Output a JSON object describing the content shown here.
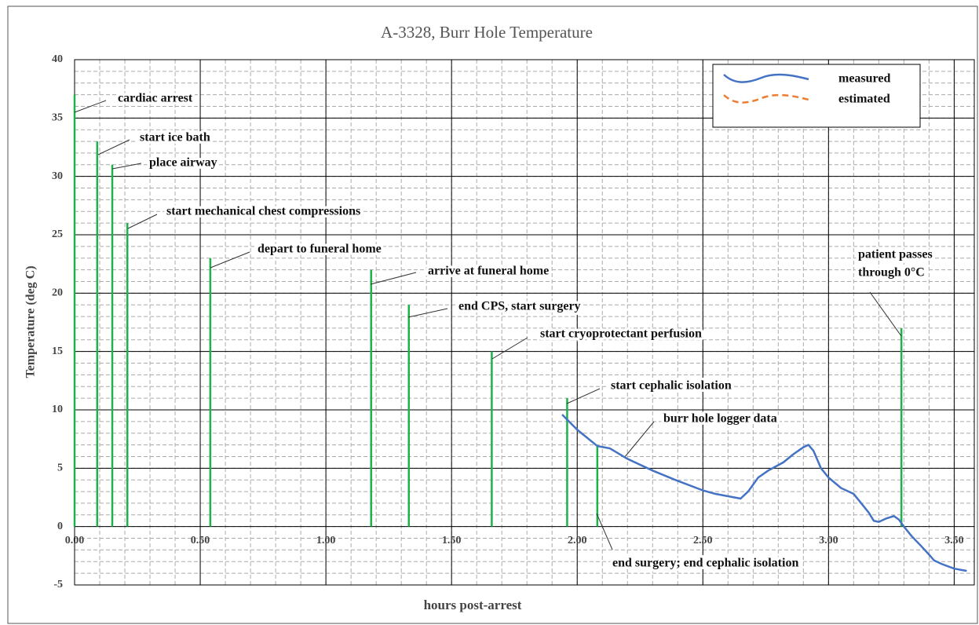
{
  "chart_data": {
    "type": "line",
    "title": "A-3328, Burr Hole Temperature",
    "xlabel": "hours post-arrest",
    "ylabel": "Temperature (deg C)",
    "xlim": [
      0,
      3.58
    ],
    "ylim": [
      -5,
      40
    ],
    "xticks": [
      {
        "value": 0,
        "label": "0.00"
      },
      {
        "value": 0.5,
        "label": "0.50"
      },
      {
        "value": 1,
        "label": "1.00"
      },
      {
        "value": 1.5,
        "label": "1.50"
      },
      {
        "value": 2,
        "label": "2.00"
      },
      {
        "value": 2.5,
        "label": "2.50"
      },
      {
        "value": 3,
        "label": "3.00"
      },
      {
        "value": 3.5,
        "label": "3.50"
      }
    ],
    "yticks": [
      -5,
      0,
      5,
      10,
      15,
      20,
      25,
      30,
      35,
      40
    ],
    "grid": true,
    "minor_grid": {
      "x": 0.1,
      "y": 1
    },
    "legend": "upper right",
    "series": [
      {
        "name": "measured",
        "color": "#4472c4",
        "style": "solid",
        "x": [
          1.94,
          2.0,
          2.08,
          2.13,
          2.2,
          2.3,
          2.39,
          2.5,
          2.55,
          2.6,
          2.65,
          2.68,
          2.72,
          2.76,
          2.82,
          2.86,
          2.9,
          2.92,
          2.94,
          2.97,
          3.0,
          3.05,
          3.1,
          3.13,
          3.16,
          3.18,
          3.2,
          3.23,
          3.26,
          3.28,
          3.3,
          3.33,
          3.37,
          3.4,
          3.42,
          3.45,
          3.5,
          3.55
        ],
        "values": [
          9.6,
          8.3,
          6.9,
          6.7,
          5.8,
          4.8,
          4.0,
          3.1,
          2.8,
          2.6,
          2.4,
          3.0,
          4.2,
          4.8,
          5.5,
          6.2,
          6.8,
          7.0,
          6.5,
          5.0,
          4.2,
          3.3,
          2.8,
          2.0,
          1.2,
          0.5,
          0.4,
          0.7,
          0.9,
          0.6,
          0.0,
          -0.8,
          -1.7,
          -2.4,
          -2.9,
          -3.2,
          -3.6,
          -3.8
        ]
      },
      {
        "name": "estimated",
        "color": "#ed7d31",
        "style": "dashed",
        "x": [],
        "values": []
      }
    ],
    "event_color": "#1db34a",
    "events": [
      {
        "x": 0,
        "top": 37,
        "label": [
          "cardiac arrest"
        ]
      },
      {
        "x": 0.09,
        "top": 33,
        "label": [
          "start ice bath"
        ]
      },
      {
        "x": 0.15,
        "top": 31,
        "label": [
          "place airway"
        ]
      },
      {
        "x": 0.21,
        "top": 26,
        "label": [
          "start mechanical chest compressions"
        ]
      },
      {
        "x": 0.54,
        "top": 23,
        "label": [
          "depart to funeral home"
        ]
      },
      {
        "x": 1.18,
        "top": 22,
        "label": [
          "arrive at funeral home"
        ]
      },
      {
        "x": 1.33,
        "top": 19,
        "label": [
          "end CPS, start surgery"
        ]
      },
      {
        "x": 1.66,
        "top": 15,
        "label": [
          "start cryoprotectant perfusion"
        ]
      },
      {
        "x": 1.96,
        "top": 11,
        "label": [
          "start cephalic isolation"
        ]
      },
      {
        "x": 2.08,
        "top": 7,
        "label": [
          "end surgery; end cephalic isolation"
        ]
      },
      {
        "x": 3.29,
        "top": 17,
        "label": [
          "patient passes",
          "through 0°C"
        ]
      }
    ],
    "annotation": "burr hole logger data"
  }
}
